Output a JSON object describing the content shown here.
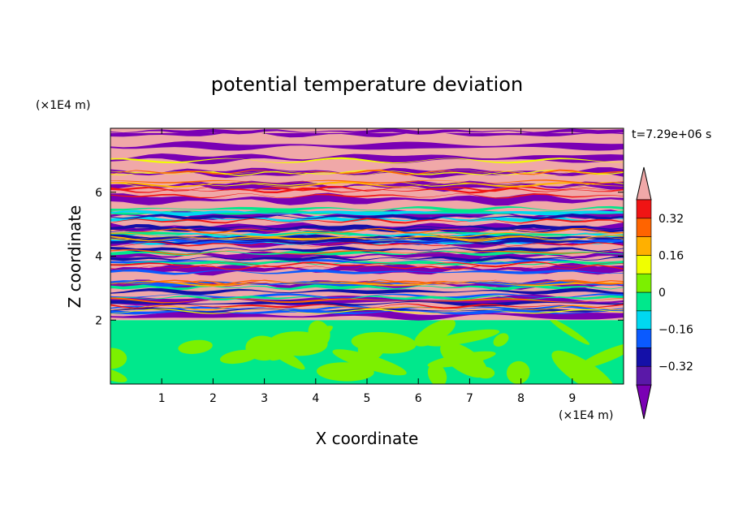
{
  "chart_data": {
    "type": "heatmap",
    "title": "potential temperature deviation",
    "xlabel": "X coordinate",
    "ylabel": "Z coordinate",
    "x_unit": "(×1E4 m)",
    "y_unit": "(×1E4 m)",
    "time_label": "t=7.29e+06 s",
    "xlim": [
      0,
      10
    ],
    "ylim": [
      0,
      8
    ],
    "x_ticks": [
      1,
      2,
      3,
      4,
      5,
      6,
      7,
      8,
      9
    ],
    "y_ticks": [
      2,
      4,
      6
    ],
    "grid": false,
    "colorbar": {
      "levels": [
        -0.48,
        -0.4,
        -0.32,
        -0.24,
        -0.16,
        -0.08,
        0,
        0.08,
        0.16,
        0.24,
        0.32,
        0.4,
        0.48
      ],
      "tick_labels": [
        "0.32",
        "0.16",
        "0",
        "−0.16",
        "−0.32"
      ],
      "tick_values": [
        0.32,
        0.16,
        0,
        -0.16,
        -0.32
      ],
      "colors": [
        "#7a00b4",
        "#5a18a8",
        "#1410a8",
        "#0a5aff",
        "#00d8f0",
        "#00e88c",
        "#7cf000",
        "#f0ff00",
        "#ffb000",
        "#ff6400",
        "#f01414",
        "#f0a8a8"
      ],
      "placement": "right"
    },
    "structure": {
      "lower_layer_top": 2.0,
      "lower_layer_colors": [
        "#00e88c",
        "#7cf000"
      ],
      "layered_region": [
        2.0,
        8.0
      ]
    }
  }
}
